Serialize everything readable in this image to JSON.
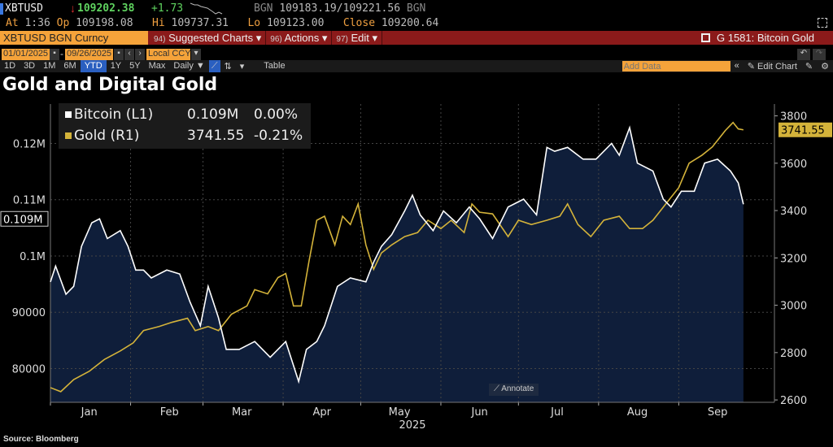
{
  "quote": {
    "ticker": "XBTUSD",
    "last": "109202.38",
    "change": "+1.73",
    "bid_src": "BGN",
    "bid": "109183.19",
    "ask": "109221.56",
    "ask_src": "BGN",
    "at_label": "At",
    "time": "1:36",
    "op_label": "Op",
    "open": "109198.08",
    "hi_label": "Hi",
    "high": "109737.31",
    "lo_label": "Lo",
    "low": "109123.00",
    "close_label": "Close",
    "close": "109200.64"
  },
  "toolbar": {
    "security": "XBTUSD BGN Curncy",
    "menus": [
      {
        "num": "94)",
        "label": "Suggested Charts ▾"
      },
      {
        "num": "96)",
        "label": "Actions ▾"
      },
      {
        "num": "97)",
        "label": "Edit ▾"
      }
    ],
    "page_title": "G 1581: Bitcoin Gold"
  },
  "dates": {
    "start": "01/01/2025",
    "end": "09/26/2025",
    "currency": "Local CCY"
  },
  "ranges": [
    "1D",
    "3D",
    "1M",
    "6M",
    "YTD",
    "1Y",
    "5Y",
    "Max"
  ],
  "active_range": "YTD",
  "frequency": "Daily ▼",
  "table_label": "Table",
  "add_data_placeholder": "Add Data",
  "edit_chart_label": "Edit Chart",
  "colors": {
    "bitcoin": "#ffffff",
    "gold": "#d4b33a",
    "area": "#0f1e3a",
    "accent": "#f5a33a",
    "menubar": "#8b1a1a"
  },
  "annotate_label": "Annotate",
  "source": "Source: Bloomberg",
  "chart_data": {
    "type": "line",
    "title": "Gold and Digital Gold",
    "xlabel": "2025",
    "months": [
      "Jan",
      "Feb",
      "Mar",
      "Apr",
      "May",
      "Jun",
      "Jul",
      "Aug",
      "Sep"
    ],
    "year": "2025",
    "legend": [
      {
        "name": "Bitcoin (L1)",
        "value": "0.109M",
        "change": "0.00%"
      },
      {
        "name": "Gold (R1)",
        "value": "3741.55",
        "change": "-0.21%"
      }
    ],
    "left_axis": {
      "ticks": [
        "80000",
        "90000",
        "0.1M",
        "0.11M",
        "0.12M"
      ],
      "tick_values": [
        80000,
        90000,
        100000,
        110000,
        120000
      ],
      "ylim": [
        74000,
        127000
      ],
      "last_label": "0.109M"
    },
    "right_axis": {
      "ticks": [
        "2600",
        "2800",
        "3000",
        "3200",
        "3400",
        "3600",
        "3800"
      ],
      "tick_values": [
        2600,
        2800,
        3000,
        3200,
        3400,
        3600,
        3800
      ],
      "ylim": [
        2590,
        3850
      ],
      "last_label": "3741.55"
    },
    "xlim_day_of_year": [
      0,
      268
    ],
    "series": [
      {
        "name": "Bitcoin",
        "axis": "left",
        "day": [
          0,
          2,
          6,
          9,
          12,
          16,
          19,
          22,
          27,
          30,
          33,
          36,
          39,
          45,
          50,
          54,
          58,
          61,
          65,
          68,
          73,
          79,
          85,
          91,
          96,
          99,
          103,
          106,
          111,
          116,
          122,
          125,
          128,
          132,
          137,
          140,
          143,
          148,
          152,
          157,
          162,
          166,
          171,
          177,
          183,
          188,
          192,
          195,
          200,
          206,
          211,
          217,
          220,
          224,
          227,
          230,
          233,
          237,
          240,
          244,
          249,
          253,
          258,
          263,
          266,
          268
        ],
        "values": [
          95400,
          98200,
          93200,
          94600,
          101700,
          105900,
          106600,
          103100,
          104500,
          101700,
          97500,
          97500,
          96100,
          97500,
          96800,
          91800,
          87600,
          94600,
          89000,
          83400,
          83400,
          84800,
          82000,
          84800,
          77700,
          83400,
          84800,
          87600,
          94600,
          96100,
          95400,
          98900,
          101700,
          103800,
          108000,
          110800,
          107300,
          104500,
          108000,
          105900,
          108700,
          106600,
          103100,
          108700,
          110100,
          107300,
          119300,
          118600,
          119300,
          117200,
          117200,
          120000,
          117900,
          122800,
          116500,
          115800,
          115100,
          110100,
          108700,
          111500,
          111500,
          116500,
          117200,
          115100,
          113000,
          109200
        ]
      },
      {
        "name": "Gold",
        "axis": "right",
        "day": [
          0,
          4,
          9,
          15,
          21,
          27,
          32,
          36,
          42,
          47,
          53,
          56,
          61,
          65,
          70,
          76,
          79,
          84,
          88,
          91,
          94,
          97,
          100,
          103,
          106,
          110,
          113,
          116,
          119,
          122,
          125,
          128,
          132,
          137,
          142,
          146,
          151,
          155,
          160,
          163,
          166,
          171,
          177,
          181,
          186,
          192,
          197,
          200,
          204,
          209,
          214,
          220,
          224,
          229,
          233,
          238,
          243,
          247,
          252,
          256,
          261,
          264,
          266,
          268
        ],
        "values": [
          2652,
          2635,
          2686,
          2721,
          2772,
          2807,
          2841,
          2893,
          2910,
          2928,
          2945,
          2893,
          2910,
          2893,
          2962,
          2997,
          3066,
          3048,
          3117,
          3134,
          2997,
          2997,
          3186,
          3359,
          3376,
          3255,
          3376,
          3341,
          3428,
          3255,
          3152,
          3221,
          3255,
          3290,
          3307,
          3359,
          3324,
          3359,
          3307,
          3428,
          3393,
          3386,
          3290,
          3359,
          3341,
          3359,
          3376,
          3428,
          3341,
          3290,
          3359,
          3376,
          3324,
          3324,
          3359,
          3428,
          3497,
          3600,
          3634,
          3669,
          3738,
          3772,
          3745,
          3741
        ]
      }
    ]
  }
}
